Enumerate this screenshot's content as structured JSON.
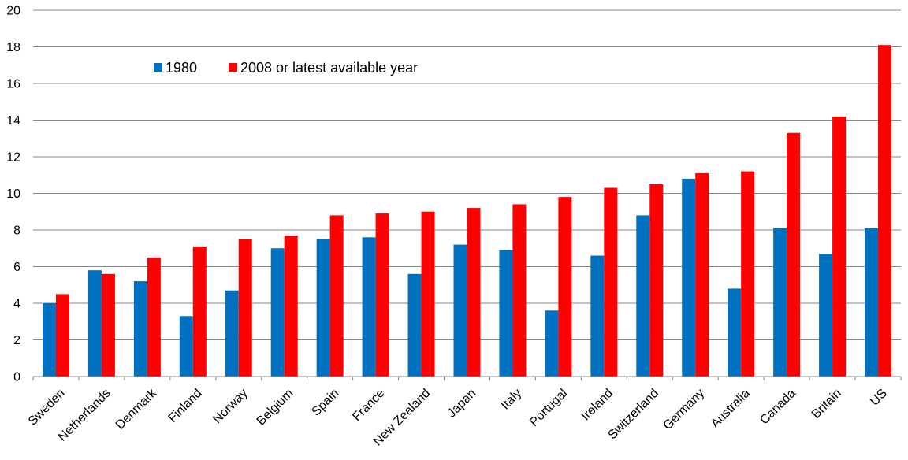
{
  "chart_data": {
    "type": "bar",
    "title": "",
    "xlabel": "",
    "ylabel": "",
    "ylim": [
      0,
      20
    ],
    "yticks": [
      0,
      2,
      4,
      6,
      8,
      10,
      12,
      14,
      16,
      18,
      20
    ],
    "grid": true,
    "legend_position": "top-left",
    "categories": [
      "Sweden",
      "Netherlands",
      "Denmark",
      "Finland",
      "Norway",
      "Belgium",
      "Spain",
      "France",
      "New Zealand",
      "Japan",
      "Italy",
      "Portugal",
      "Ireland",
      "Switzerland",
      "Germany",
      "Australia",
      "Canada",
      "Britain",
      "US"
    ],
    "series": [
      {
        "name": "1980",
        "color": "#0070C0",
        "values": [
          4.0,
          5.8,
          5.2,
          3.3,
          4.7,
          7.0,
          7.5,
          7.6,
          5.6,
          7.2,
          6.9,
          3.6,
          6.6,
          8.8,
          10.8,
          4.8,
          8.1,
          6.7,
          8.1
        ]
      },
      {
        "name": "2008 or latest available year",
        "color": "#FF0000",
        "values": [
          4.5,
          5.6,
          6.5,
          7.1,
          7.5,
          7.7,
          8.8,
          8.9,
          9.0,
          9.2,
          9.4,
          9.8,
          10.3,
          10.5,
          11.1,
          11.2,
          13.3,
          14.2,
          18.1
        ]
      }
    ]
  }
}
